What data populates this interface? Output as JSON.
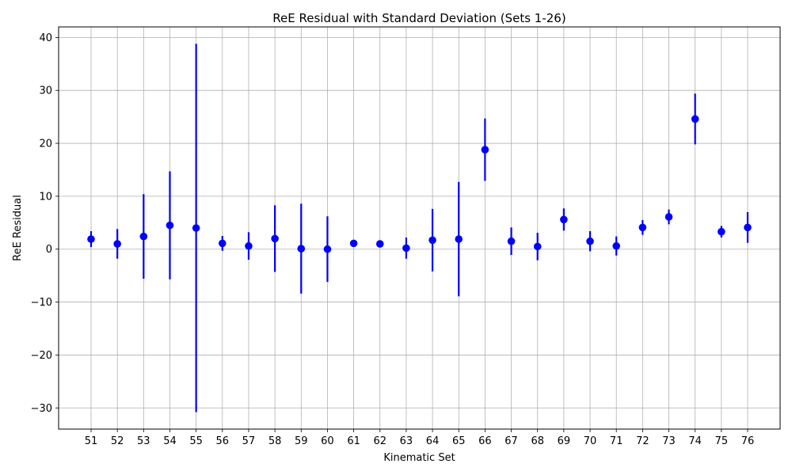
{
  "chart_data": {
    "type": "scatter",
    "title": "ReE Residual with Standard Deviation (Sets 1-26)",
    "xlabel": "Kinematic Set",
    "ylabel": "ReE Residual",
    "categories": [
      "51",
      "52",
      "53",
      "54",
      "55",
      "56",
      "57",
      "58",
      "59",
      "60",
      "61",
      "62",
      "63",
      "64",
      "65",
      "66",
      "67",
      "68",
      "69",
      "70",
      "71",
      "72",
      "73",
      "74",
      "75",
      "76"
    ],
    "series": [
      {
        "values": [
          1.9,
          1.0,
          2.4,
          4.5,
          4.0,
          1.1,
          0.6,
          2.0,
          0.1,
          0.0,
          1.1,
          1.0,
          0.2,
          1.7,
          1.9,
          18.8,
          1.5,
          0.5,
          5.6,
          1.5,
          0.6,
          4.1,
          6.1,
          24.6,
          3.3,
          4.1
        ],
        "errors": [
          1.5,
          2.8,
          8.0,
          10.2,
          34.8,
          1.4,
          2.6,
          6.3,
          8.5,
          6.2,
          0.2,
          0.3,
          2.0,
          5.9,
          10.8,
          5.9,
          2.6,
          2.6,
          2.1,
          1.9,
          1.8,
          1.4,
          1.4,
          4.8,
          1.1,
          2.9
        ]
      }
    ],
    "ylim": [
      -34,
      42
    ],
    "yticks": [
      -30,
      -20,
      -10,
      0,
      10,
      20,
      30,
      40
    ],
    "ytick_labels": [
      "−30",
      "−20",
      "−10",
      "0",
      "10",
      "20",
      "30",
      "40"
    ],
    "grid": true,
    "colors": {
      "series": "#0000ff",
      "grid": "#b0b0b0",
      "axis": "#000000"
    }
  }
}
